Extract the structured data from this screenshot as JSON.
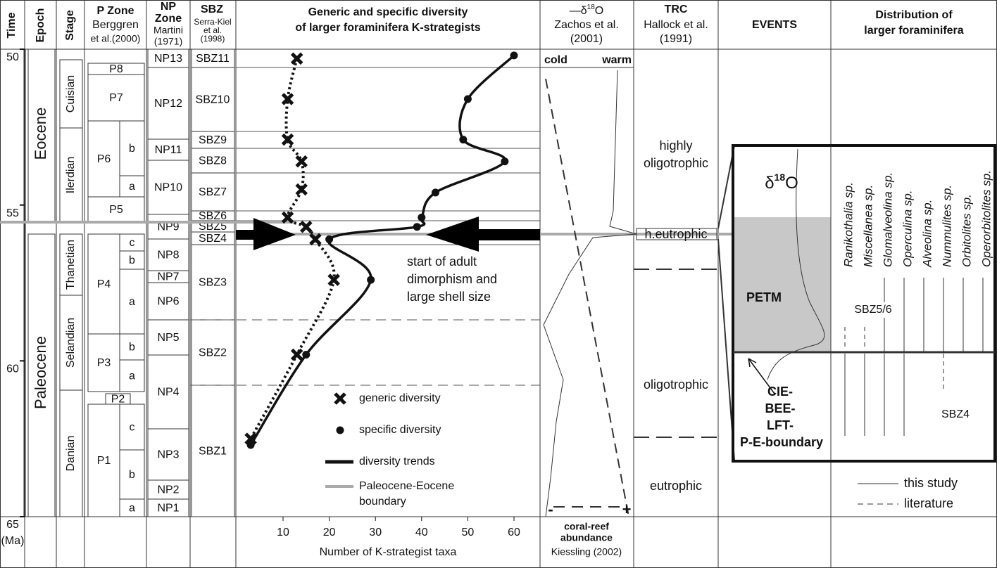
{
  "columns": {
    "time": "Time",
    "epoch": "Epoch",
    "stage": "Stage",
    "p_zone": [
      "P Zone",
      "Berggren",
      "et al.(2000)"
    ],
    "np_zone": [
      "NP",
      "Zone",
      "Martini",
      "(1971)"
    ],
    "sbz": [
      "SBZ",
      "Serra-Kiel",
      "et al.",
      "(1998)"
    ],
    "d18o": {
      "prefix": "—",
      "delta": "δ",
      "sup": "18",
      "post": "O",
      "ref": [
        "Zachos et al.",
        "(2001)"
      ],
      "cold": "cold",
      "warm": "warm"
    },
    "trc": [
      "TRC",
      "Hallock et al.",
      "(1991)"
    ],
    "events": "EVENTS",
    "distribution": [
      "Distribution of",
      "larger foraminifera"
    ]
  },
  "epochs": [
    "Eocene",
    "Paleocene"
  ],
  "stages": [
    "Cuisian",
    "Ilerdian",
    "Thanetian",
    "Selandian",
    "Danian"
  ],
  "p_zones": [
    "P8",
    "P7",
    "P6",
    "b",
    "a",
    "P5",
    "P4",
    "c",
    "b",
    "a",
    "P3",
    "b",
    "a",
    "P2",
    "P1",
    "c",
    "b",
    "a"
  ],
  "np_zones": [
    "NP13",
    "NP12",
    "NP11",
    "NP10",
    "NP9",
    "NP8",
    "NP7",
    "NP6",
    "NP5",
    "NP4",
    "NP3",
    "NP2",
    "NP1"
  ],
  "sbz_zones": [
    "SBZ11",
    "SBZ10",
    "SBZ9",
    "SBZ8",
    "SBZ7",
    "SBZ6",
    "SBZ5",
    "SBZ4",
    "SBZ3",
    "SBZ2",
    "SBZ1"
  ],
  "coral_reef": {
    "scale": [
      "-",
      "+"
    ],
    "label": [
      "coral-reef",
      "abundance"
    ],
    "ref": "Kiessling (2002)"
  },
  "trc_states": [
    "highly",
    "oligotrophic",
    "h.eutrophic",
    "oligotrophic",
    "eutrophic"
  ],
  "events": {
    "d18o": {
      "delta": "δ",
      "sup": "18",
      "post": "O"
    },
    "petm": "PETM",
    "boundary": [
      "CIE-",
      "BEE-",
      "LFT-",
      "P-E-boundary"
    ]
  },
  "distribution": {
    "taxa": [
      "Ranikothalia sp.",
      "Miscellanea sp.",
      "Glomalveolina sp.",
      "Operculina sp.",
      "Alveolina sp.",
      "Nummulites sp.",
      "Orbitolites sp.",
      "Operorbitolites sp."
    ],
    "zones": [
      "SBZ5/6",
      "SBZ4"
    ],
    "legend": [
      "this study",
      "literature"
    ]
  },
  "chart_data": {
    "type": "scatter",
    "title": [
      "Generic and specific diversity",
      "of larger foraminifera K-strategists"
    ],
    "x_label": "Number of K-strategist taxa",
    "xlim": [
      0,
      65
    ],
    "xticks": [
      10,
      20,
      30,
      40,
      50,
      60
    ],
    "ylim": [
      50,
      65
    ],
    "yticks": [
      50,
      55,
      60,
      65
    ],
    "y_unit": "(Ma)",
    "series": [
      {
        "name": "generic diversity",
        "marker": "x",
        "color": "#111",
        "x": [
          13,
          11,
          11,
          14,
          14,
          11,
          15,
          17,
          21,
          13,
          3
        ],
        "values": [
          50.3,
          51.6,
          52.9,
          53.6,
          54.5,
          55.4,
          55.7,
          56.1,
          57.4,
          59.8,
          62.5
        ]
      },
      {
        "name": "specific diversity",
        "marker": "dot",
        "color": "#111",
        "x": [
          60,
          50,
          49,
          58,
          43,
          40,
          39,
          20,
          29,
          15,
          3
        ],
        "values": [
          50.2,
          51.6,
          52.9,
          53.6,
          54.6,
          55.4,
          55.7,
          56.1,
          57.4,
          59.8,
          62.7
        ]
      }
    ],
    "legend_extra": [
      "diversity trends",
      [
        "Paleocene-Eocene",
        "boundary"
      ]
    ],
    "annotation": [
      "start of adult",
      "dimorphism and",
      "large shell size"
    ]
  }
}
